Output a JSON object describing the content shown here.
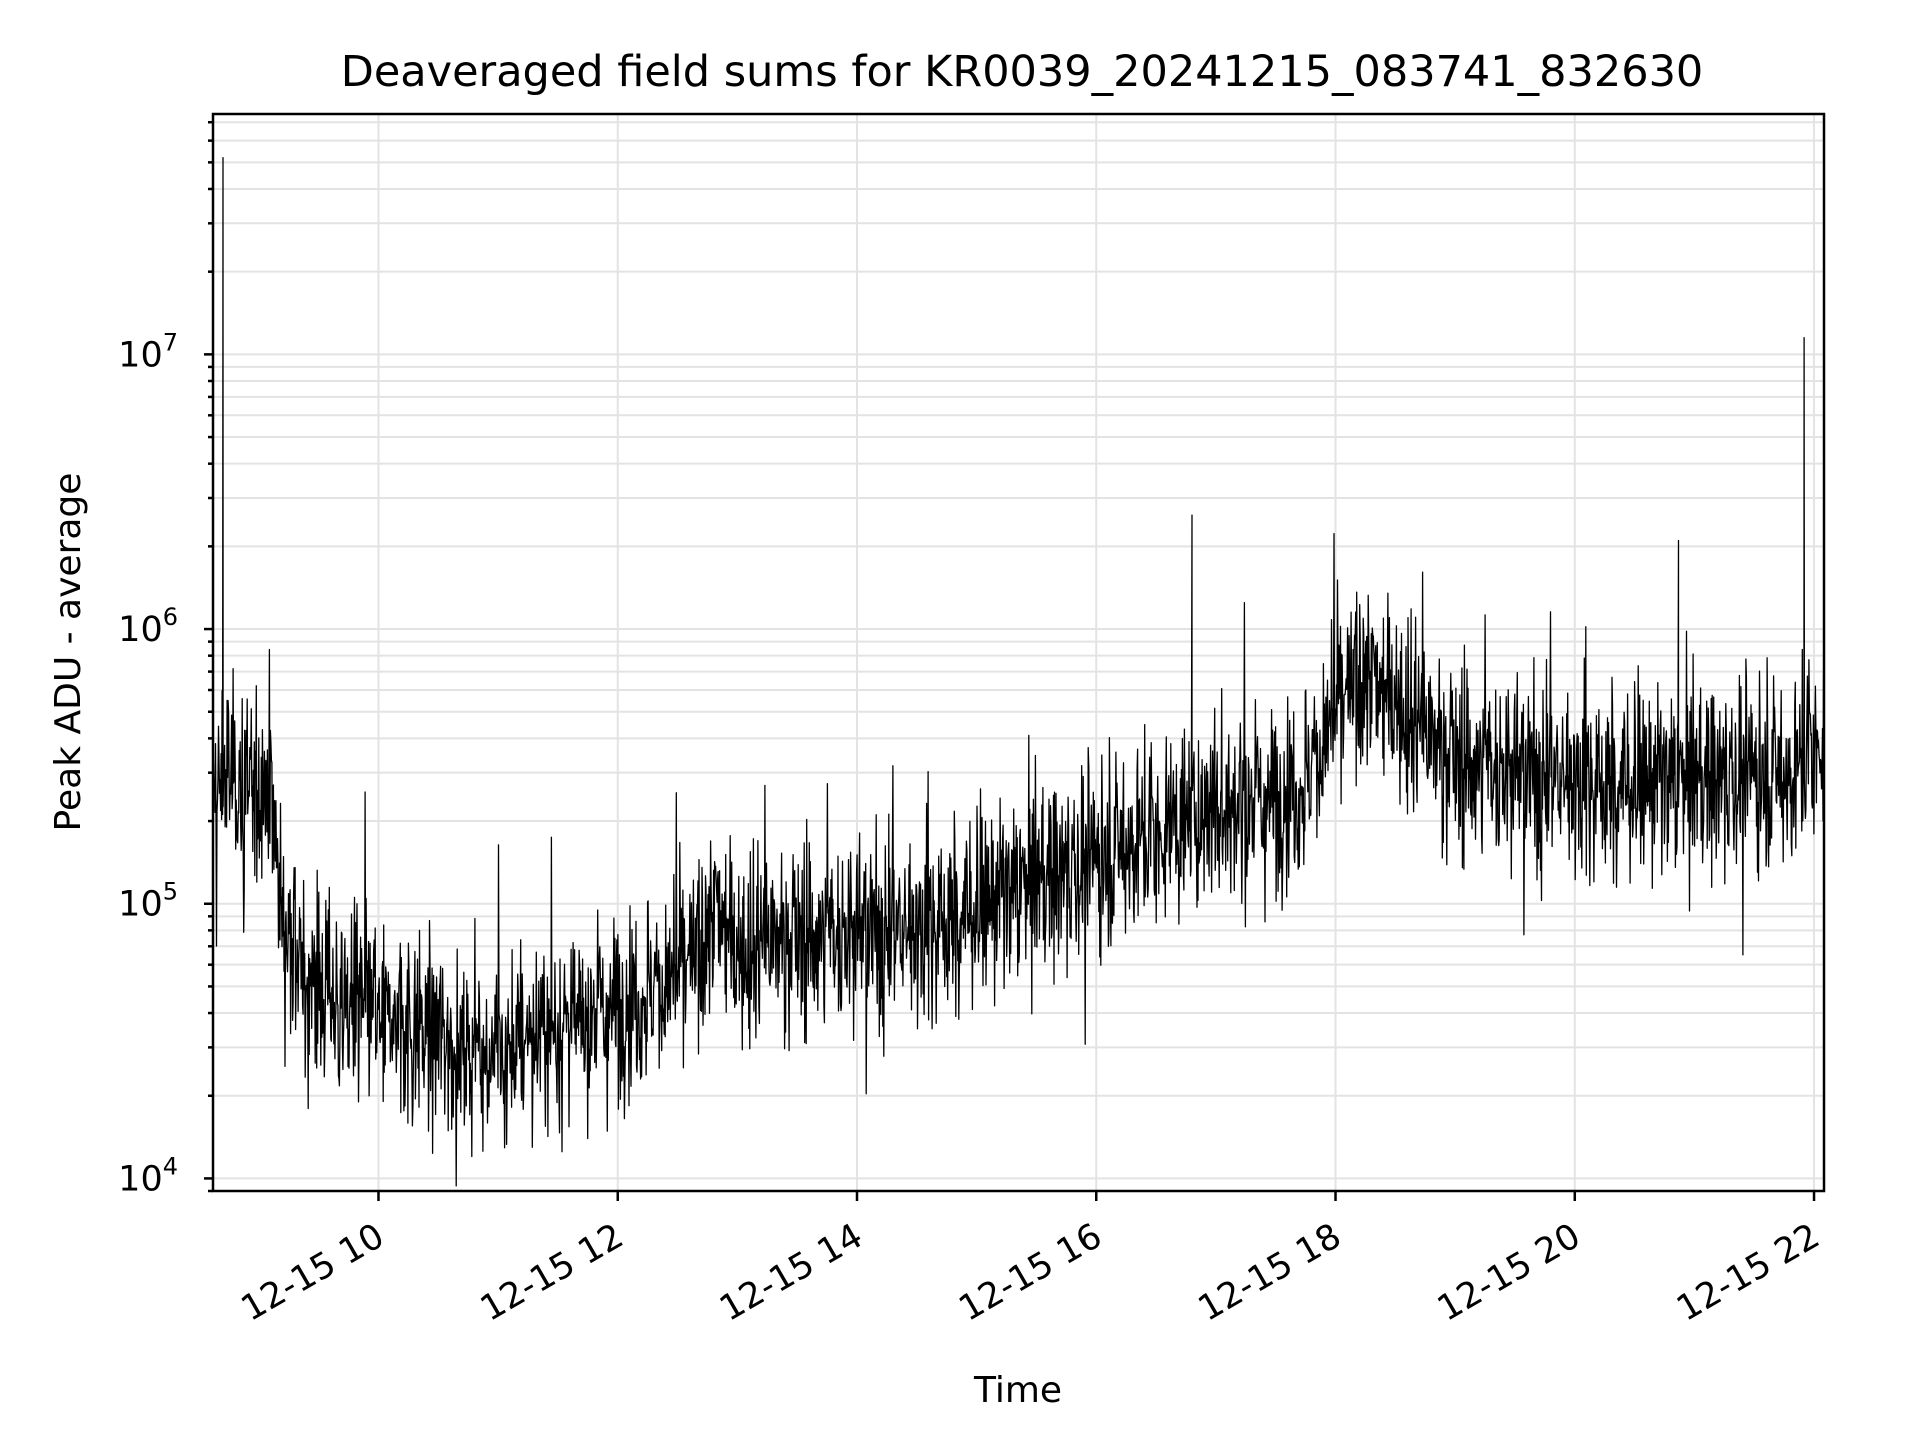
{
  "chart_data": {
    "type": "line",
    "title": "Deaveraged field sums for KR0039_20241215_083741_832630",
    "xlabel": "Time",
    "ylabel": "Peak ADU - average",
    "yscale": "log",
    "ylim": [
      9000,
      75000000
    ],
    "xlim": [
      "2024-12-15 08:37",
      "2024-12-15 22:05"
    ],
    "grid": true,
    "x_ticks": [
      {
        "value": "2024-12-15 10:00",
        "label": "12-15 10"
      },
      {
        "value": "2024-12-15 12:00",
        "label": "12-15 12"
      },
      {
        "value": "2024-12-15 14:00",
        "label": "12-15 14"
      },
      {
        "value": "2024-12-15 16:00",
        "label": "12-15 16"
      },
      {
        "value": "2024-12-15 18:00",
        "label": "12-15 18"
      },
      {
        "value": "2024-12-15 20:00",
        "label": "12-15 20"
      },
      {
        "value": "2024-12-15 22:00",
        "label": "12-15 22"
      }
    ],
    "y_ticks": [
      {
        "value": 10000,
        "base": "10",
        "exp": "4"
      },
      {
        "value": 100000,
        "base": "10",
        "exp": "5"
      },
      {
        "value": 1000000,
        "base": "10",
        "exp": "6"
      },
      {
        "value": 10000000,
        "base": "10",
        "exp": "7"
      }
    ],
    "series": [
      {
        "color": "#000000",
        "x": [
          "2024-12-15 08:37",
          "2024-12-15 08:43",
          "2024-12-15 08:50",
          "2024-12-15 08:58",
          "2024-12-15 09:05",
          "2024-12-15 09:13",
          "2024-12-15 09:20",
          "2024-12-15 09:30",
          "2024-12-15 09:40",
          "2024-12-15 09:50",
          "2024-12-15 10:00",
          "2024-12-15 10:20",
          "2024-12-15 10:40",
          "2024-12-15 11:00",
          "2024-12-15 11:20",
          "2024-12-15 11:40",
          "2024-12-15 12:00",
          "2024-12-15 12:20",
          "2024-12-15 12:40",
          "2024-12-15 12:50",
          "2024-12-15 13:00",
          "2024-12-15 13:30",
          "2024-12-15 14:00",
          "2024-12-15 14:30",
          "2024-12-15 15:00",
          "2024-12-15 15:30",
          "2024-12-15 16:00",
          "2024-12-15 16:30",
          "2024-12-15 17:00",
          "2024-12-15 17:30",
          "2024-12-15 17:45",
          "2024-12-15 18:00",
          "2024-12-15 18:15",
          "2024-12-15 18:30",
          "2024-12-15 18:45",
          "2024-12-15 19:00",
          "2024-12-15 19:30",
          "2024-12-15 20:00",
          "2024-12-15 20:30",
          "2024-12-15 21:00",
          "2024-12-15 21:30",
          "2024-12-15 21:50",
          "2024-12-15 22:00",
          "2024-12-15 22:05"
        ],
        "y": [
          230000,
          300000,
          280000,
          260000,
          300000,
          80000,
          55000,
          48000,
          45000,
          42000,
          38000,
          35000,
          31000,
          28000,
          33000,
          38000,
          42000,
          50000,
          62000,
          95000,
          70000,
          75000,
          78000,
          80000,
          95000,
          120000,
          145000,
          180000,
          220000,
          240000,
          280000,
          500000,
          650000,
          580000,
          420000,
          330000,
          300000,
          280000,
          270000,
          280000,
          300000,
          290000,
          380000,
          420000
        ]
      }
    ],
    "spikes": [
      {
        "x": "2024-12-15 08:42",
        "y": 52000000
      },
      {
        "x": "2024-12-15 16:48",
        "y": 2600000
      },
      {
        "x": "2024-12-15 20:52",
        "y": 2100000
      },
      {
        "x": "2024-12-15 21:55",
        "y": 11500000
      }
    ]
  }
}
